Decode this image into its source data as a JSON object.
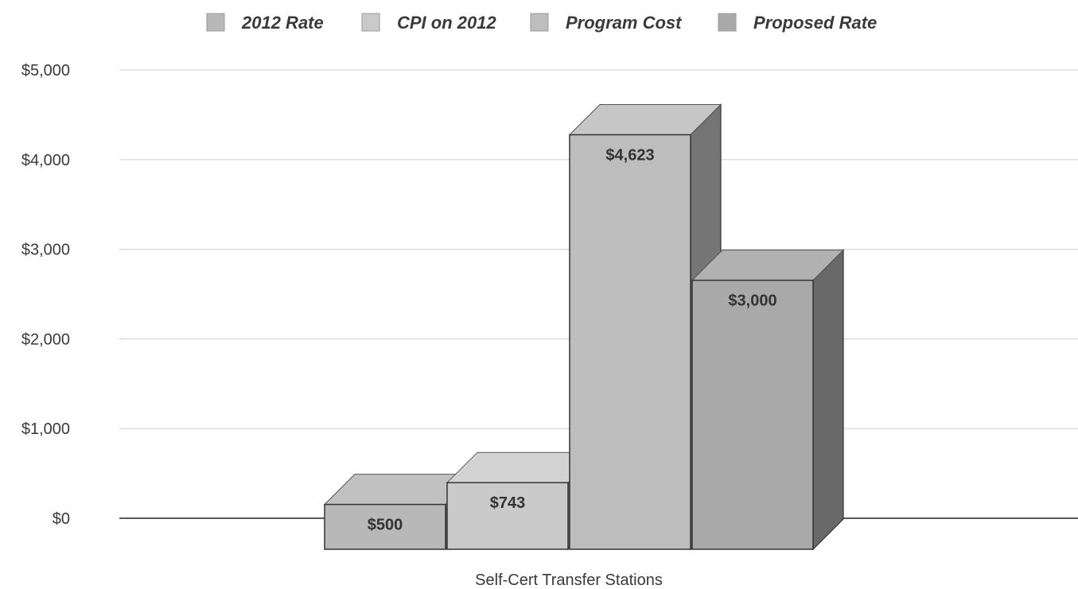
{
  "chart_data": {
    "type": "bar",
    "title": "",
    "xlabel": "",
    "ylabel": "",
    "categories": [
      "Self-Cert Transfer Stations"
    ],
    "series": [
      {
        "name": "2012 Rate",
        "values": [
          500
        ],
        "label": "$500",
        "color": "#b8b8b8"
      },
      {
        "name": "CPI on 2012",
        "values": [
          743
        ],
        "label": "$743",
        "color": "#c9c9c9"
      },
      {
        "name": "Program Cost",
        "values": [
          4623
        ],
        "label": "$4,623",
        "color": "#bdbdbd"
      },
      {
        "name": "Proposed Rate",
        "values": [
          3000
        ],
        "label": "$3,000",
        "color": "#a9a9a9"
      }
    ],
    "ylim": [
      0,
      5000
    ],
    "yticks": [
      0,
      1000,
      2000,
      3000,
      4000,
      5000
    ],
    "ytick_labels": [
      "$0",
      "$1,000",
      "$2,000",
      "$3,000",
      "$4,000",
      "$5,000"
    ],
    "grid": true,
    "legend_position": "top-center",
    "style": "3d"
  }
}
